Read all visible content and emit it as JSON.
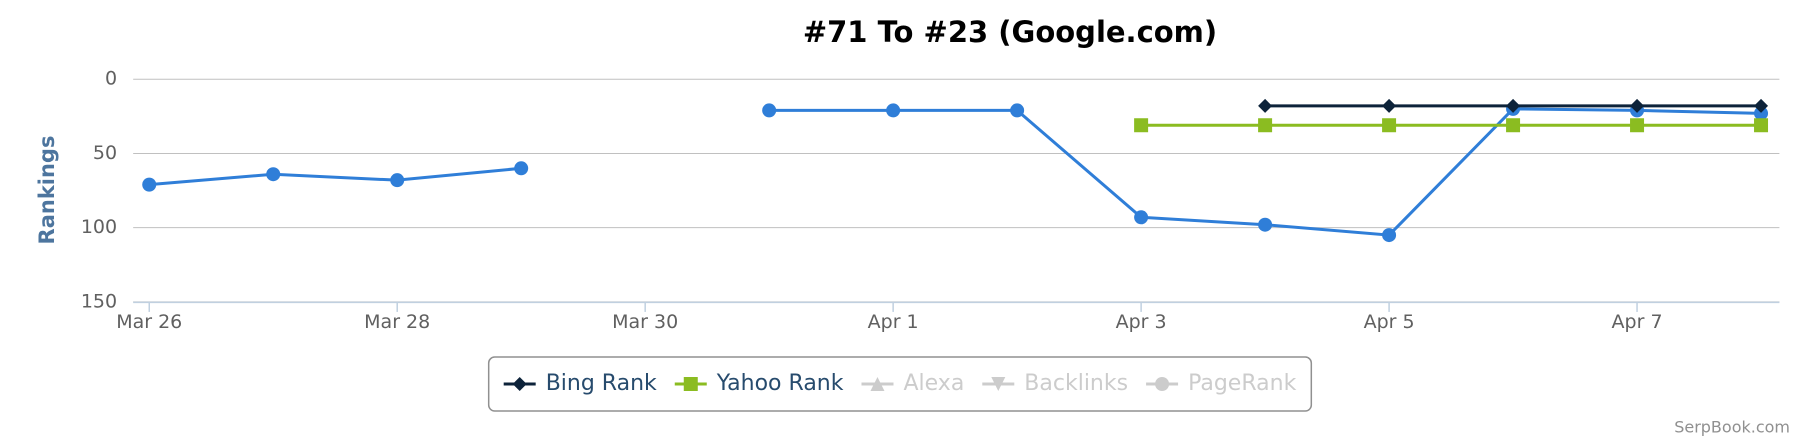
{
  "chart_data": {
    "type": "line",
    "title": "#71 To #23 (Google.com)",
    "y_label": "Rankings",
    "credit": "SerpBook.com",
    "categories": [
      "Mar 26",
      null,
      "Mar 28",
      null,
      "Mar 30",
      null,
      "Apr 1",
      null,
      "Apr 3",
      null,
      "Apr 5",
      null,
      "Apr 7",
      null
    ],
    "ylim": [
      0,
      150
    ],
    "reversed": true,
    "yticks": [
      0,
      50,
      100,
      150
    ],
    "grid": true,
    "legend": "bottom",
    "series": [
      {
        "color": "#2f7ed8",
        "marker": "circle",
        "values": [
          71,
          64,
          68,
          60,
          null,
          21,
          21,
          21,
          93,
          98,
          105,
          20,
          21,
          23
        ]
      },
      {
        "name": "Bing Rank",
        "color": "#0d233a",
        "marker": "diamond",
        "values": [
          null,
          null,
          null,
          null,
          null,
          null,
          null,
          null,
          null,
          18,
          18,
          18,
          18,
          18
        ]
      },
      {
        "name": "Yahoo Rank",
        "color": "#8bbc21",
        "marker": "square",
        "values": [
          null,
          null,
          null,
          null,
          null,
          null,
          null,
          null,
          31,
          31,
          31,
          31,
          31,
          31
        ]
      },
      {
        "name": "Alexa",
        "color": "#cccccc",
        "marker": "triangle",
        "visible": false
      },
      {
        "name": "Backlinks",
        "color": "#cccccc",
        "marker": "triangle-down",
        "visible": false
      },
      {
        "name": "PageRank",
        "color": "#cccccc",
        "marker": "circle",
        "visible": false
      }
    ]
  }
}
